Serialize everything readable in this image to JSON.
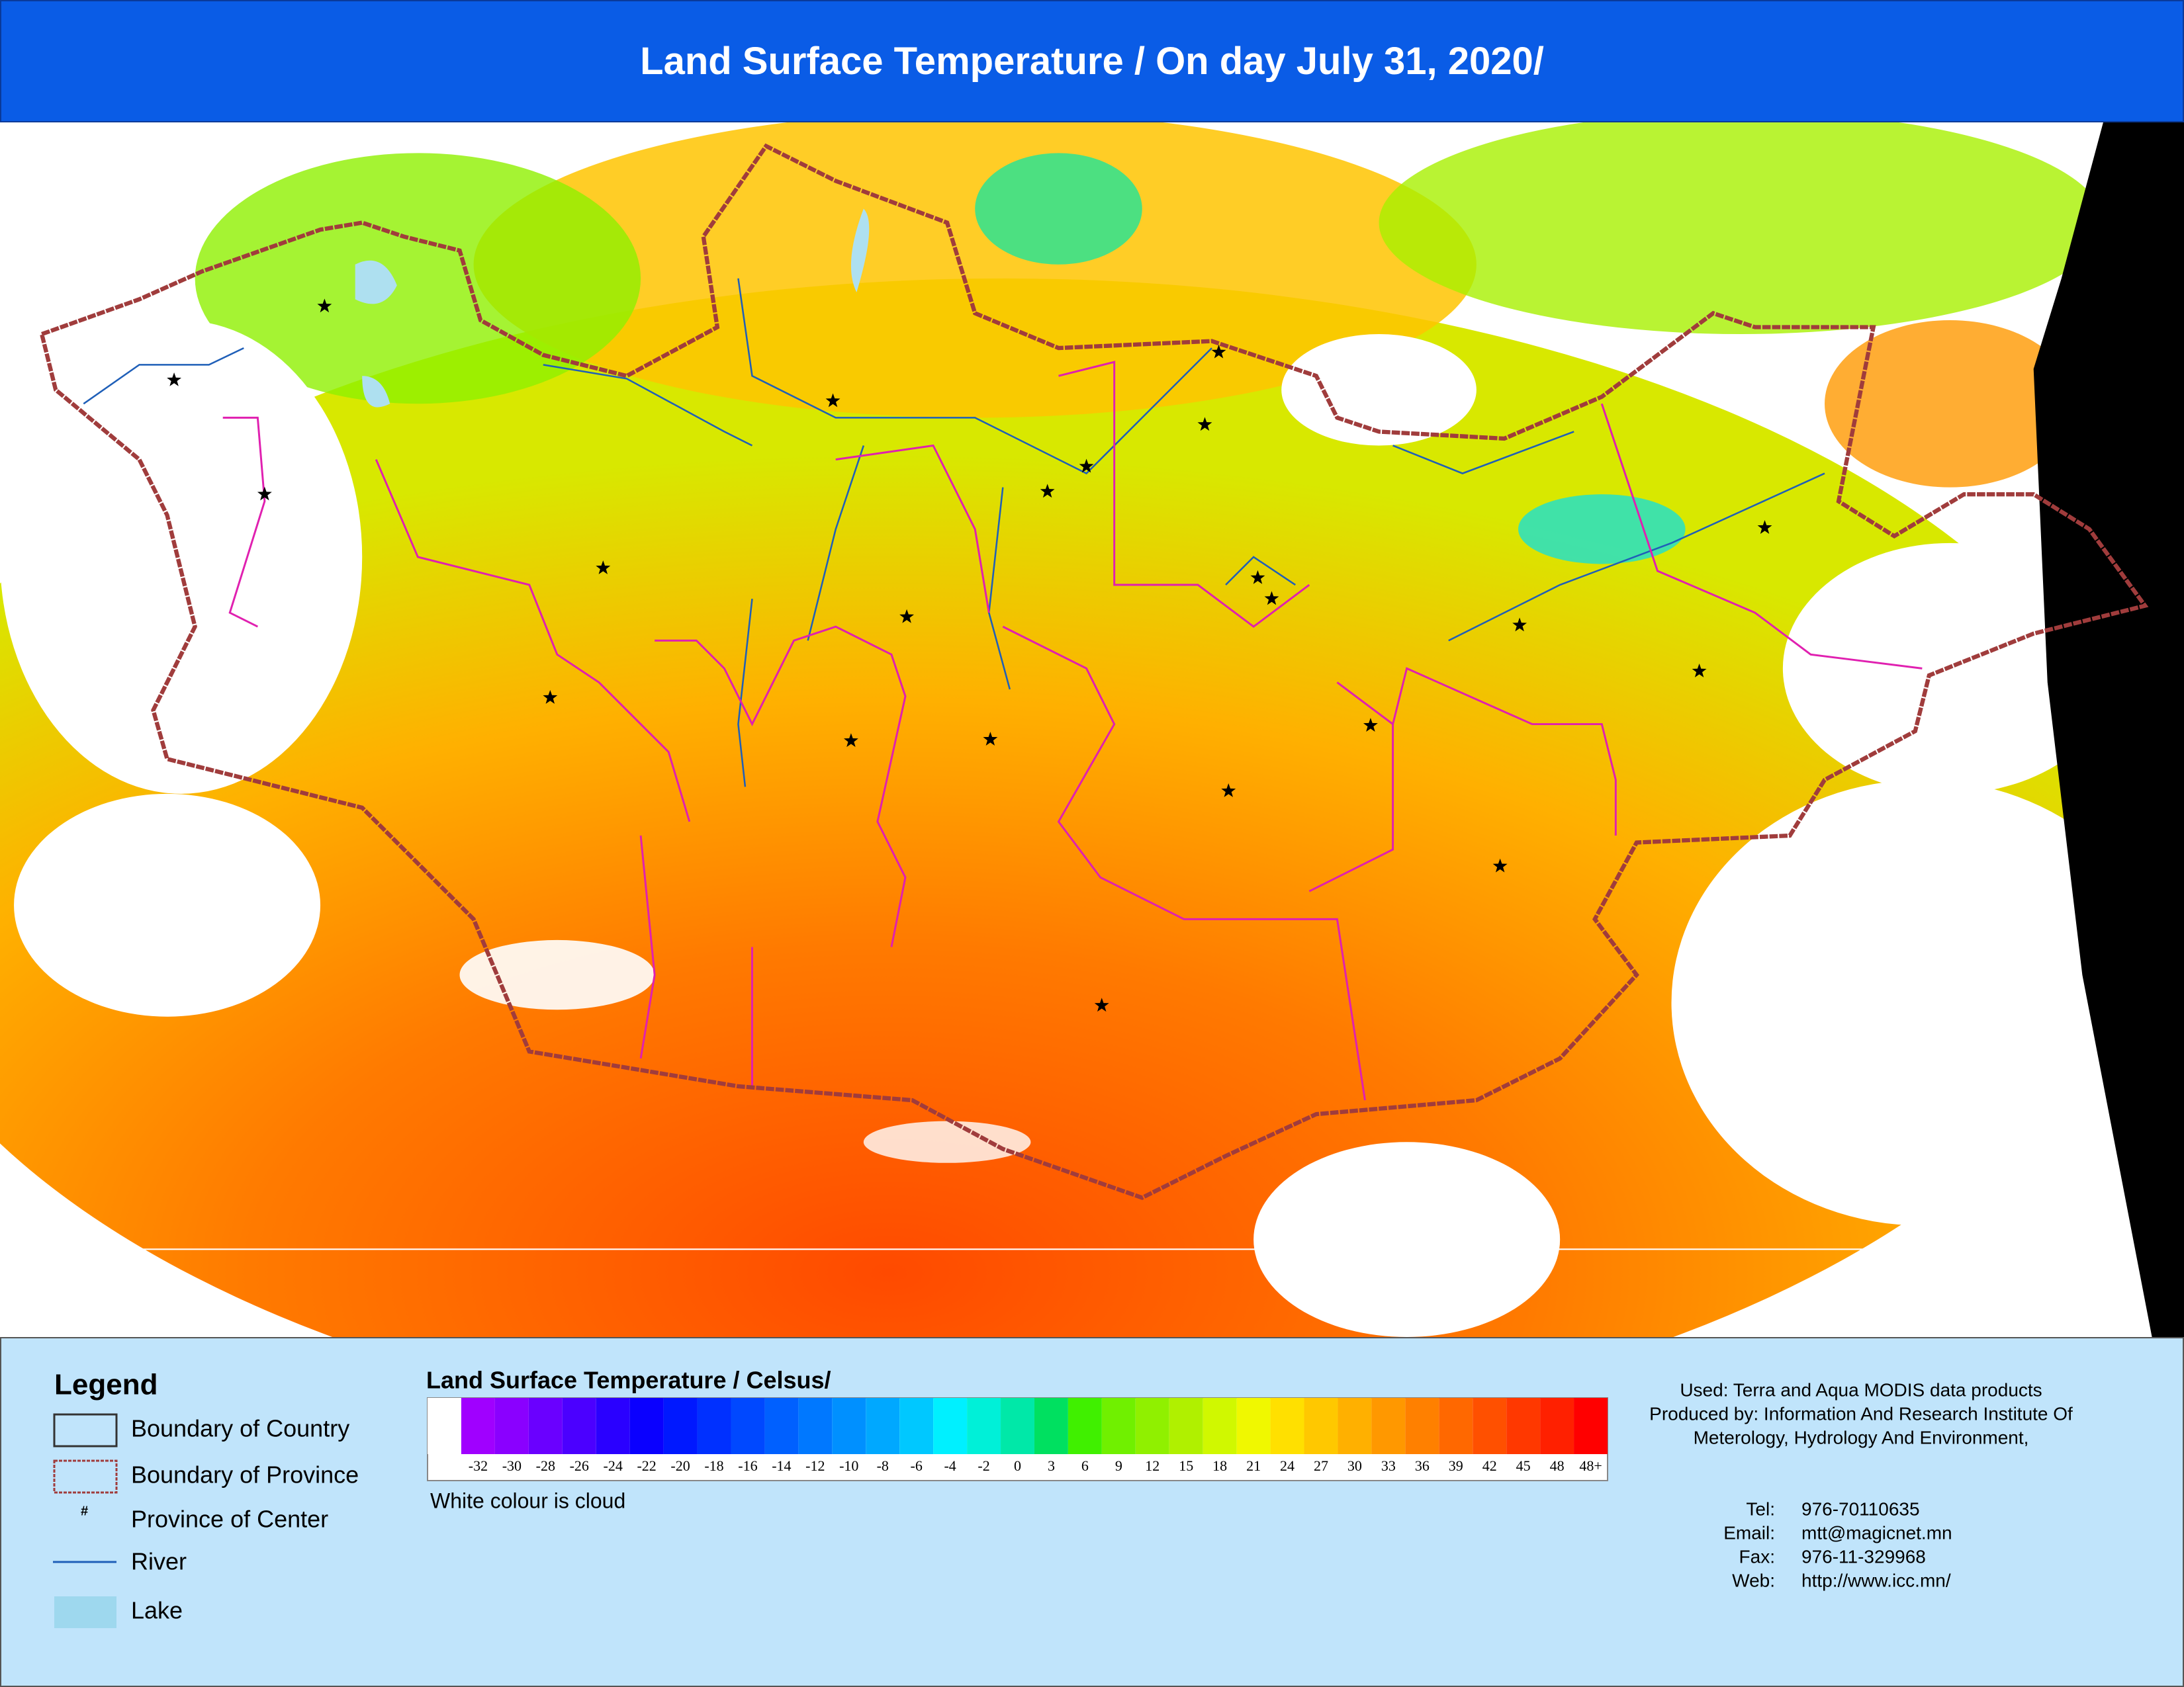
{
  "header": {
    "title": "Land Surface Temperature / On day July 31, 2020/"
  },
  "legend": {
    "title": "Legend",
    "items": [
      {
        "label": "Boundary of Country"
      },
      {
        "label": "Boundary of Province"
      },
      {
        "label": "Province of Center",
        "symbol": "#"
      },
      {
        "label": "River"
      },
      {
        "label": "Lake"
      }
    ]
  },
  "scale": {
    "title": "Land Surface Temperature / Celsus/",
    "labels": [
      null,
      "-32",
      "-30",
      "-28",
      "-26",
      "-24",
      "-22",
      "-20",
      "-18",
      "-16",
      "-14",
      "-12",
      "-10",
      "-8",
      "-6",
      "-4",
      "-2",
      "0",
      "3",
      "6",
      "9",
      "12",
      "15",
      "18",
      "21",
      "24",
      "27",
      "30",
      "33",
      "36",
      "39",
      "42",
      "45",
      "48",
      "48+"
    ],
    "colors": [
      "#ffffff",
      "#a000ff",
      "#8a00ff",
      "#6a00ff",
      "#4b00ff",
      "#2a00ff",
      "#0a00ff",
      "#0018ff",
      "#0030ff",
      "#0048ff",
      "#0060ff",
      "#0078ff",
      "#0090ff",
      "#00a8ff",
      "#00c8ff",
      "#00f0ff",
      "#00f0d8",
      "#00e8a8",
      "#00e060",
      "#40f000",
      "#70f000",
      "#90f000",
      "#b0f000",
      "#d0f800",
      "#f0f800",
      "#ffe000",
      "#ffc800",
      "#ffb000",
      "#ff9800",
      "#ff8000",
      "#ff6800",
      "#ff5000",
      "#ff3800",
      "#ff2000",
      "#ff0000"
    ],
    "note": "White colour is cloud"
  },
  "credits": [
    "Used: Terra and Aqua MODIS data products",
    "Produced by:  Information And Research Institute Of",
    "Meterology, Hydrology And Environment,"
  ],
  "contact": [
    {
      "label": "Tel:",
      "value": "976-70110635"
    },
    {
      "label": "Email:",
      "value": "mtt@magicnet.mn"
    },
    {
      "label": "Fax:",
      "value": "976-11-329968"
    },
    {
      "label": "Web:",
      "value": "http://www.icc.mn/"
    }
  ]
}
